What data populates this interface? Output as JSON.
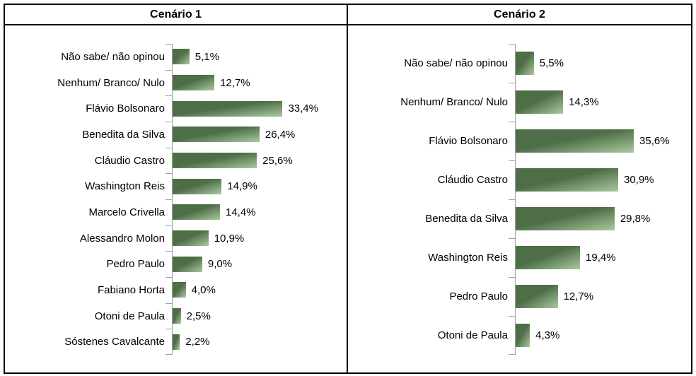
{
  "colors": {
    "bar_gradient_dark": "#4d6e47",
    "bar_gradient_light": "#aac99f",
    "axis": "#a0a0a0",
    "text": "#000000",
    "border": "#000000",
    "background": "#ffffff"
  },
  "chart_data": [
    {
      "type": "bar",
      "orientation": "horizontal",
      "title": "Cenário 1",
      "categories": [
        "Não sabe/ não opinou",
        "Nenhum/ Branco/ Nulo",
        "Flávio Bolsonaro",
        "Benedita da Silva",
        "Cláudio Castro",
        "Washington Reis",
        "Marcelo Crivella",
        "Alessandro Molon",
        "Pedro Paulo",
        "Fabiano Horta",
        "Otoni de Paula",
        "Sóstenes Cavalcante"
      ],
      "values": [
        5.1,
        12.7,
        33.4,
        26.4,
        25.6,
        14.9,
        14.4,
        10.9,
        9.0,
        4.0,
        2.5,
        2.2
      ],
      "value_labels": [
        "5,1%",
        "12,7%",
        "33,4%",
        "26,4%",
        "25,6%",
        "14,9%",
        "14,4%",
        "10,9%",
        "9,0%",
        "4,0%",
        "2,5%",
        "2,2%"
      ],
      "xlim": [
        0,
        52
      ],
      "grid": false,
      "legend": false,
      "value_label_position": "right-of-bar"
    },
    {
      "type": "bar",
      "orientation": "horizontal",
      "title": "Cenário 2",
      "categories": [
        "Não sabe/ não opinou",
        "Nenhum/ Branco/ Nulo",
        "Flávio Bolsonaro",
        "Cláudio Castro",
        "Benedita da Silva",
        "Washington Reis",
        "Pedro Paulo",
        "Otoni de Paula"
      ],
      "values": [
        5.5,
        14.3,
        35.6,
        30.9,
        29.8,
        19.4,
        12.7,
        4.3
      ],
      "value_labels": [
        "5,5%",
        "14,3%",
        "35,6%",
        "30,9%",
        "29,8%",
        "19,4%",
        "12,7%",
        "4,3%"
      ],
      "xlim": [
        0,
        52
      ],
      "grid": false,
      "legend": false,
      "value_label_position": "right-of-bar"
    }
  ]
}
